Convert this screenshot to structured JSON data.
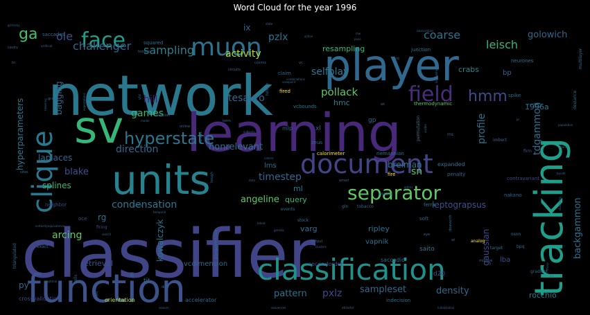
{
  "title": "Word Cloud for the year 1996",
  "chart_data": {
    "type": "wordcloud",
    "title": "Word Cloud for the year 1996",
    "background": "#000000",
    "palette": "viridis",
    "words": [
      {
        "text": "classifier",
        "weight": 1.0,
        "color": "#414487"
      },
      {
        "text": "network",
        "weight": 0.82,
        "color": "#2a788e"
      },
      {
        "text": "learning",
        "weight": 0.78,
        "color": "#482878"
      },
      {
        "text": "player",
        "weight": 0.62,
        "color": "#31688e"
      },
      {
        "text": "units",
        "weight": 0.6,
        "color": "#26828e"
      },
      {
        "text": "function",
        "weight": 0.58,
        "color": "#3b528b"
      },
      {
        "text": "tracking",
        "weight": 0.56,
        "color": "#1f9e89"
      },
      {
        "text": "sv",
        "weight": 0.55,
        "color": "#35b779"
      },
      {
        "text": "classification",
        "weight": 0.44,
        "color": "#21918c"
      },
      {
        "text": "clique",
        "weight": 0.4,
        "color": "#2a788e"
      },
      {
        "text": "document",
        "weight": 0.4,
        "color": "#414487"
      },
      {
        "text": "muon",
        "weight": 0.36,
        "color": "#2c728e"
      },
      {
        "text": "face",
        "weight": 0.3,
        "color": "#1f9e89"
      },
      {
        "text": "field",
        "weight": 0.3,
        "color": "#472d7b"
      },
      {
        "text": "separator",
        "weight": 0.28,
        "color": "#5ec962"
      },
      {
        "text": "hyperstate",
        "weight": 0.24,
        "color": "#2a788e"
      },
      {
        "text": "hmm",
        "weight": 0.22,
        "color": "#3e4989"
      },
      {
        "text": "ga",
        "weight": 0.2,
        "color": "#44bf70"
      },
      {
        "text": "leisch",
        "weight": 0.16,
        "color": "#35b779"
      },
      {
        "text": "coarse",
        "weight": 0.16,
        "color": "#2c728e"
      },
      {
        "text": "golowich",
        "weight": 0.14,
        "color": "#31688e"
      },
      {
        "text": "sampling",
        "weight": 0.16,
        "color": "#26828e"
      },
      {
        "text": "activity",
        "weight": 0.15,
        "color": "#b5de2b"
      },
      {
        "text": "challenger",
        "weight": 0.16,
        "color": "#31688e"
      },
      {
        "text": "ole",
        "weight": 0.16,
        "color": "#3b528b"
      },
      {
        "text": "pzlx",
        "weight": 0.14,
        "color": "#2c728e"
      },
      {
        "text": "ix",
        "weight": 0.12,
        "color": "#31688e"
      },
      {
        "text": "resampling",
        "weight": 0.11,
        "color": "#35b779"
      },
      {
        "text": "selfplay",
        "weight": 0.14,
        "color": "#2a788e"
      },
      {
        "text": "pollack",
        "weight": 0.15,
        "color": "#5ec962"
      },
      {
        "text": "crabs",
        "weight": 0.1,
        "color": "#26828e"
      },
      {
        "text": "bp",
        "weight": 0.08,
        "color": "#31688e"
      },
      {
        "text": "tesauro",
        "weight": 0.14,
        "color": "#31688e"
      },
      {
        "text": "hmc",
        "weight": 0.11,
        "color": "#2a788e"
      },
      {
        "text": "games",
        "weight": 0.14,
        "color": "#35b779"
      },
      {
        "text": "hill",
        "weight": 0.13,
        "color": "#481f70"
      },
      {
        "text": "tdgammon",
        "weight": 0.14,
        "color": "#2c728e"
      },
      {
        "text": "profile",
        "weight": 0.13,
        "color": "#2c728e"
      },
      {
        "text": "1996a",
        "weight": 0.11,
        "color": "#2c728e"
      },
      {
        "text": "direction",
        "weight": 0.13,
        "color": "#31688e"
      },
      {
        "text": "nonrelevant",
        "weight": 0.12,
        "color": "#2c728e"
      },
      {
        "text": "hyperparameters",
        "weight": 0.12,
        "color": "#2a788e"
      },
      {
        "text": "laplaces",
        "weight": 0.11,
        "color": "#31688e"
      },
      {
        "text": "bagging",
        "weight": 0.11,
        "color": "#31688e"
      },
      {
        "text": "blake",
        "weight": 0.12,
        "color": "#3b528b"
      },
      {
        "text": "splines",
        "weight": 0.12,
        "color": "#35b779"
      },
      {
        "text": "timestep",
        "weight": 0.13,
        "color": "#31688e"
      },
      {
        "text": "sn",
        "weight": 0.13,
        "color": "#5ec962"
      },
      {
        "text": "breiman",
        "weight": 0.11,
        "color": "#2c728e"
      },
      {
        "text": "condensation",
        "weight": 0.13,
        "color": "#2a788e"
      },
      {
        "text": "angeline",
        "weight": 0.13,
        "color": "#5ec962"
      },
      {
        "text": "query",
        "weight": 0.11,
        "color": "#35b779"
      },
      {
        "text": "leptograpsus",
        "weight": 0.12,
        "color": "#3b528b"
      },
      {
        "text": "backgammon",
        "weight": 0.13,
        "color": "#2c728e"
      },
      {
        "text": "rg",
        "weight": 0.12,
        "color": "#2c728e"
      },
      {
        "text": "arcing",
        "weight": 0.14,
        "color": "#5ec962"
      },
      {
        "text": "kowalczyk",
        "weight": 0.12,
        "color": "#2a788e"
      },
      {
        "text": "varg",
        "weight": 0.11,
        "color": "#2c728e"
      },
      {
        "text": "ripley",
        "weight": 0.11,
        "color": "#2c728e"
      },
      {
        "text": "vapnik",
        "weight": 0.1,
        "color": "#2c728e"
      },
      {
        "text": "gaussian",
        "weight": 0.12,
        "color": "#3e4989"
      },
      {
        "text": "retrieval",
        "weight": 0.11,
        "color": "#3b528b"
      },
      {
        "text": "pattern",
        "weight": 0.13,
        "color": "#2c728e"
      },
      {
        "text": "pxlz",
        "weight": 0.14,
        "color": "#3e4989"
      },
      {
        "text": "sampleset",
        "weight": 0.13,
        "color": "#31688e"
      },
      {
        "text": "density",
        "weight": 0.13,
        "color": "#31688e"
      },
      {
        "text": "rocchio",
        "weight": 0.11,
        "color": "#2a788e"
      },
      {
        "text": "py",
        "weight": 0.12,
        "color": "#31688e"
      },
      {
        "text": "tjt",
        "weight": 0.09,
        "color": "#31688e"
      },
      {
        "text": "vcdimension",
        "weight": 0.1,
        "color": "#31688e"
      },
      {
        "text": "saito",
        "weight": 0.09,
        "color": "#2a788e"
      },
      {
        "text": "lba",
        "weight": 0.1,
        "color": "#3b528b"
      },
      {
        "text": "d20",
        "weight": 0.09,
        "color": "#3b528b"
      },
      {
        "text": "crossvalidation",
        "weight": 0.08,
        "color": "#3e4989"
      },
      {
        "text": "orientation",
        "weight": 0.08,
        "color": "#b5de2b"
      },
      {
        "text": "accelerator",
        "weight": 0.08,
        "color": "#31688e"
      },
      {
        "text": "indecision",
        "weight": 0.07,
        "color": "#2c728e"
      },
      {
        "text": "saccadic",
        "weight": 0.08,
        "color": "#31688e"
      },
      {
        "text": "secondorder",
        "weight": 0.08,
        "color": "#3b528b"
      },
      {
        "text": "ml",
        "weight": 0.11,
        "color": "#2a788e"
      },
      {
        "text": "lms",
        "weight": 0.1,
        "color": "#2c728e"
      },
      {
        "text": "gp",
        "weight": 0.09,
        "color": "#31688e"
      },
      {
        "text": "xl",
        "weight": 0.09,
        "color": "#31688e"
      },
      {
        "text": "mlp",
        "weight": 0.08,
        "color": "#31688e"
      },
      {
        "text": "zeus",
        "weight": 0.07,
        "color": "#31688e"
      },
      {
        "text": "calorimeter",
        "weight": 0.07,
        "color": "#fde725"
      },
      {
        "text": "riemannian",
        "weight": 0.07,
        "color": "#2c728e"
      },
      {
        "text": "vcbounds",
        "weight": 0.07,
        "color": "#2a788e"
      },
      {
        "text": "thermodynamic",
        "weight": 0.07,
        "color": "#5ec962"
      },
      {
        "text": "fired",
        "weight": 0.07,
        "color": "#fde725"
      },
      {
        "text": "claim",
        "weight": 0.07,
        "color": "#31688e"
      },
      {
        "text": "squared",
        "weight": 0.07,
        "color": "#2c728e"
      },
      {
        "text": "junction",
        "weight": 0.07,
        "color": "#2a788e"
      },
      {
        "text": "saccades",
        "weight": 0.07,
        "color": "#31688e"
      },
      {
        "text": "neurones",
        "weight": 0.07,
        "color": "#2c728e"
      },
      {
        "text": "spike",
        "weight": 0.07,
        "color": "#2c728e"
      },
      {
        "text": "expanded",
        "weight": 0.08,
        "color": "#2c728e"
      },
      {
        "text": "contravariant",
        "weight": 0.07,
        "color": "#3e4989"
      },
      {
        "text": "nakano",
        "weight": 0.07,
        "color": "#31688e"
      },
      {
        "text": "fire",
        "weight": 0.07,
        "color": "#fde725"
      },
      {
        "text": "penalty",
        "weight": 0.07,
        "color": "#31688e"
      },
      {
        "text": "ferra",
        "weight": 0.07,
        "color": "#2a788e"
      },
      {
        "text": "soft",
        "weight": 0.07,
        "color": "#31688e"
      },
      {
        "text": "matrix",
        "weight": 0.06,
        "color": "#2c728e"
      },
      {
        "text": "tobacco",
        "weight": 0.06,
        "color": "#31688e"
      },
      {
        "text": "gln",
        "weight": 0.06,
        "color": "#2c728e"
      },
      {
        "text": "stock",
        "weight": 0.06,
        "color": "#2c728e"
      },
      {
        "text": "events",
        "weight": 0.06,
        "color": "#2c728e"
      },
      {
        "text": "neighbor",
        "weight": 0.07,
        "color": "#3e4989"
      },
      {
        "text": "oce",
        "weight": 0.07,
        "color": "#3e4989"
      },
      {
        "text": "firing",
        "weight": 0.06,
        "color": "#3b528b"
      },
      {
        "text": "exact",
        "weight": 0.06,
        "color": "#2c728e"
      },
      {
        "text": "cells",
        "weight": 0.06,
        "color": "#31688e"
      },
      {
        "text": "triangulated",
        "weight": 0.06,
        "color": "#2c728e"
      },
      {
        "text": "paugammoisy",
        "weight": 0.06,
        "color": "#2c728e"
      },
      {
        "text": "analog",
        "weight": 0.06,
        "color": "#fde725"
      },
      {
        "text": "osnn",
        "weight": 0.06,
        "color": "#2c728e"
      },
      {
        "text": "bpq",
        "weight": 0.06,
        "color": "#2c728e"
      },
      {
        "text": "target",
        "weight": 0.06,
        "color": "#2c728e"
      },
      {
        "text": "gradient",
        "weight": 0.06,
        "color": "#2c728e"
      },
      {
        "text": "imbert",
        "weight": 0.06,
        "color": "#31688e"
      },
      {
        "text": "firm",
        "weight": 0.06,
        "color": "#3b528b"
      },
      {
        "text": "ms",
        "weight": 0.06,
        "color": "#31688e"
      },
      {
        "text": "permutation",
        "weight": 0.06,
        "color": "#2c728e"
      },
      {
        "text": "deviance",
        "weight": 0.06,
        "color": "#2c728e"
      },
      {
        "text": "multilayer",
        "weight": 0.06,
        "color": "#2c728e"
      },
      {
        "text": "hebbian",
        "weight": 0.05,
        "color": "#31688e"
      },
      {
        "text": "online",
        "weight": 0.05,
        "color": "#31688e"
      },
      {
        "text": "pursuit",
        "weight": 0.05,
        "color": "#31688e"
      },
      {
        "text": "hough",
        "weight": 0.05,
        "color": "#31688e"
      },
      {
        "text": "vlsi",
        "weight": 0.05,
        "color": "#31688e"
      },
      {
        "text": "graph",
        "weight": 0.05,
        "color": "#31688e"
      },
      {
        "text": "sites",
        "weight": 0.05,
        "color": "#31688e"
      },
      {
        "text": "hidden",
        "weight": 0.05,
        "color": "#31688e"
      },
      {
        "text": "circuits",
        "weight": 0.05,
        "color": "#31688e"
      },
      {
        "text": "vc",
        "weight": 0.05,
        "color": "#31688e"
      },
      {
        "text": "cosmic",
        "weight": 0.05,
        "color": "#31688e"
      },
      {
        "text": "fullstep",
        "weight": 0.05,
        "color": "#31688e"
      },
      {
        "text": "term",
        "weight": 0.05,
        "color": "#31688e"
      },
      {
        "text": "wt",
        "weight": 0.05,
        "color": "#31688e"
      },
      {
        "text": "ro",
        "weight": 0.05,
        "color": "#31688e"
      },
      {
        "text": "amari",
        "weight": 0.05,
        "color": "#31688e"
      },
      {
        "text": "eye",
        "weight": 0.05,
        "color": "#31688e"
      },
      {
        "text": "output",
        "weight": 0.05,
        "color": "#31688e"
      },
      {
        "text": "duff",
        "weight": 0.04,
        "color": "#31688e"
      },
      {
        "text": "wtl",
        "weight": 0.04,
        "color": "#31688e"
      },
      {
        "text": "wi",
        "weight": 0.04,
        "color": "#31688e"
      },
      {
        "text": "deweerth",
        "weight": 0.04,
        "color": "#31688e"
      },
      {
        "text": "mixture",
        "weight": 0.04,
        "color": "#31688e"
      },
      {
        "text": "cavity",
        "weight": 0.04,
        "color": "#31688e"
      },
      {
        "text": "tn",
        "weight": 0.04,
        "color": "#31688e"
      },
      {
        "text": "grimasty",
        "weight": 0.03,
        "color": "#31688e"
      },
      {
        "text": "artificial",
        "weight": 0.03,
        "color": "#31688e"
      },
      {
        "text": "action",
        "weight": 0.03,
        "color": "#31688e"
      },
      {
        "text": "pose",
        "weight": 0.03,
        "color": "#31688e"
      },
      {
        "text": "observables",
        "weight": 0.03,
        "color": "#31688e"
      },
      {
        "text": "state",
        "weight": 0.03,
        "color": "#31688e"
      },
      {
        "text": "viewpoint",
        "weight": 0.03,
        "color": "#31688e"
      },
      {
        "text": "subjects",
        "weight": 0.03,
        "color": "#31688e"
      },
      {
        "text": "cancer",
        "weight": 0.03,
        "color": "#31688e"
      },
      {
        "text": "data",
        "weight": 0.03,
        "color": "#31688e"
      },
      {
        "text": "clusters",
        "weight": 0.03,
        "color": "#31688e"
      },
      {
        "text": "attractor",
        "weight": 0.03,
        "color": "#31688e"
      },
      {
        "text": "sequences",
        "weight": 0.03,
        "color": "#31688e"
      },
      {
        "text": "initialization",
        "weight": 0.03,
        "color": "#31688e"
      },
      {
        "text": "sojourn",
        "weight": 0.03,
        "color": "#31688e"
      },
      {
        "text": "visible",
        "weight": 0.03,
        "color": "#31688e"
      },
      {
        "text": "temporal",
        "weight": 0.03,
        "color": "#31688e"
      },
      {
        "text": "dunmur",
        "weight": 0.03,
        "color": "#31688e"
      },
      {
        "text": "latent",
        "weight": 0.03,
        "color": "#31688e"
      },
      {
        "text": "genetic",
        "weight": 0.03,
        "color": "#31688e"
      },
      {
        "text": "alcohol",
        "weight": 0.03,
        "color": "#31688e"
      },
      {
        "text": "bandit",
        "weight": 0.03,
        "color": "#31688e"
      },
      {
        "text": "clustering",
        "weight": 0.03,
        "color": "#31688e"
      },
      {
        "text": "overfitting",
        "weight": 0.03,
        "color": "#31688e"
      },
      {
        "text": "population",
        "weight": 0.03,
        "color": "#31688e"
      },
      {
        "text": "loglikelihood",
        "weight": 0.03,
        "color": "#31688e"
      },
      {
        "text": "combinations",
        "weight": 0.03,
        "color": "#31688e"
      },
      {
        "text": "certaintyequivalence",
        "weight": 0.02,
        "color": "#31688e"
      },
      {
        "text": "optimal",
        "weight": 0.02,
        "color": "#31688e"
      },
      {
        "text": "search",
        "weight": 0.02,
        "color": "#31688e"
      },
      {
        "text": "expectations",
        "weight": 0.02,
        "color": "#31688e"
      },
      {
        "text": "tinkering",
        "weight": 0.02,
        "color": "#31688e"
      },
      {
        "text": "ica",
        "weight": 0.02,
        "color": "#31688e"
      },
      {
        "text": "thorp",
        "weight": 0.02,
        "color": "#31688e"
      },
      {
        "text": "gittins",
        "weight": 0.02,
        "color": "#31688e"
      },
      {
        "text": "model",
        "weight": 0.02,
        "color": "#31688e"
      },
      {
        "text": "mw",
        "weight": 0.02,
        "color": "#31688e"
      },
      {
        "text": "pr",
        "weight": 0.02,
        "color": "#31688e"
      },
      {
        "text": "bit",
        "weight": 0.02,
        "color": "#31688e"
      }
    ]
  }
}
